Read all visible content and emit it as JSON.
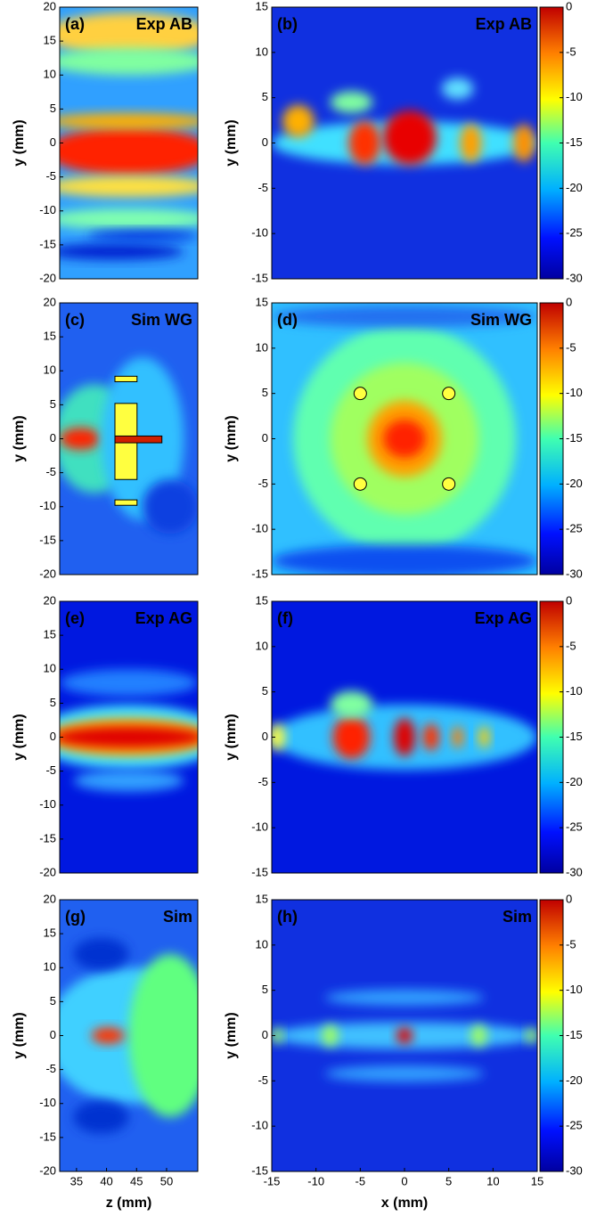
{
  "chart_data": [
    {
      "type": "heatmap",
      "panel": "(a)",
      "title": "Exp AB",
      "ylabel": "y (mm)",
      "ylim": [
        -20,
        20
      ],
      "yticks": [
        -20,
        -15,
        -10,
        -5,
        0,
        5,
        10,
        15,
        20
      ]
    },
    {
      "type": "heatmap",
      "panel": "(b)",
      "title": "Exp AB",
      "ylabel": "y (mm)",
      "ylim": [
        -15,
        15
      ],
      "yticks": [
        -15,
        -10,
        -5,
        0,
        5,
        10,
        15
      ],
      "colorbar": {
        "lim": [
          -30,
          0
        ],
        "ticks": [
          -30,
          -25,
          -20,
          -15,
          -10,
          -5,
          0
        ]
      }
    },
    {
      "type": "heatmap",
      "panel": "(c)",
      "title": "Sim WG",
      "ylabel": "y (mm)",
      "ylim": [
        -20,
        20
      ],
      "yticks": [
        -20,
        -15,
        -10,
        -5,
        0,
        5,
        10,
        15,
        20
      ]
    },
    {
      "type": "heatmap",
      "panel": "(d)",
      "title": "Sim WG",
      "ylabel": "y (mm)",
      "ylim": [
        -15,
        15
      ],
      "yticks": [
        -15,
        -10,
        -5,
        0,
        5,
        10,
        15
      ],
      "colorbar": {
        "lim": [
          -30,
          0
        ],
        "ticks": [
          -30,
          -25,
          -20,
          -15,
          -10,
          -5,
          0
        ]
      }
    },
    {
      "type": "heatmap",
      "panel": "(e)",
      "title": "Exp AG",
      "ylabel": "y (mm)",
      "ylim": [
        -20,
        20
      ],
      "yticks": [
        -20,
        -15,
        -10,
        -5,
        0,
        5,
        10,
        15,
        20
      ]
    },
    {
      "type": "heatmap",
      "panel": "(f)",
      "title": "Exp AG",
      "ylabel": "y (mm)",
      "ylim": [
        -15,
        15
      ],
      "yticks": [
        -15,
        -10,
        -5,
        0,
        5,
        10,
        15
      ],
      "colorbar": {
        "lim": [
          -30,
          0
        ],
        "ticks": [
          -30,
          -25,
          -20,
          -15,
          -10,
          -5,
          0
        ]
      }
    },
    {
      "type": "heatmap",
      "panel": "(g)",
      "title": "Sim",
      "ylabel": "y (mm)",
      "ylim": [
        -20,
        20
      ],
      "yticks": [
        -20,
        -15,
        -10,
        -5,
        0,
        5,
        10,
        15,
        20
      ],
      "xlabel": "z (mm)",
      "xlim": [
        32.2,
        55.2
      ],
      "xticks": [
        35,
        40,
        45,
        50
      ]
    },
    {
      "type": "heatmap",
      "panel": "(h)",
      "title": "Sim",
      "ylabel": "y (mm)",
      "ylim": [
        -15,
        15
      ],
      "yticks": [
        -15,
        -10,
        -5,
        0,
        5,
        10,
        15
      ],
      "colorbar": {
        "lim": [
          -30,
          0
        ],
        "ticks": [
          -30,
          -25,
          -20,
          -15,
          -10,
          -5,
          0
        ]
      },
      "xlabel": "x (mm)",
      "xlim": [
        -15,
        15
      ],
      "xticks": [
        -15,
        -10,
        -5,
        0,
        5,
        10,
        15
      ]
    }
  ]
}
